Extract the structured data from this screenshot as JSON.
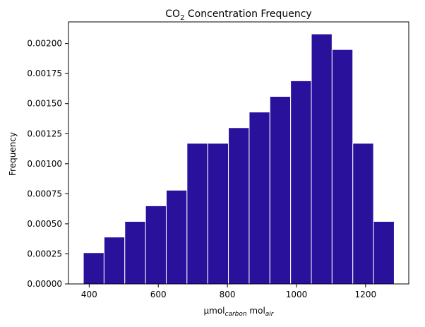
{
  "chart_data": {
    "type": "bar",
    "title": {
      "prefix": "CO",
      "subscript": "2",
      "suffix": " Concentration Frequency"
    },
    "xlabel": {
      "base1": "µmol",
      "sub1": "carbon",
      "base2": " mol",
      "sub2": "air"
    },
    "ylabel": "Frequency",
    "xlim": [
      340,
      1325
    ],
    "ylim": [
      0,
      0.00218
    ],
    "grid": false,
    "bar_color": "#2a119b",
    "bar_edge_color": "#ffffff",
    "bins": [
      {
        "x0": 383,
        "x1": 443,
        "value": 0.00026
      },
      {
        "x0": 443,
        "x1": 503,
        "value": 0.00039
      },
      {
        "x0": 503,
        "x1": 563,
        "value": 0.00052
      },
      {
        "x0": 563,
        "x1": 623,
        "value": 0.00065
      },
      {
        "x0": 623,
        "x1": 683,
        "value": 0.00078
      },
      {
        "x0": 683,
        "x1": 743,
        "value": 0.00117
      },
      {
        "x0": 743,
        "x1": 803,
        "value": 0.00117
      },
      {
        "x0": 803,
        "x1": 863,
        "value": 0.0013
      },
      {
        "x0": 863,
        "x1": 923,
        "value": 0.00143
      },
      {
        "x0": 923,
        "x1": 983,
        "value": 0.00156
      },
      {
        "x0": 983,
        "x1": 1043,
        "value": 0.00169
      },
      {
        "x0": 1043,
        "x1": 1103,
        "value": 0.00208
      },
      {
        "x0": 1103,
        "x1": 1163,
        "value": 0.00195
      },
      {
        "x0": 1163,
        "x1": 1223,
        "value": 0.00117
      },
      {
        "x0": 1223,
        "x1": 1283,
        "value": 0.00052
      }
    ],
    "xticks": [
      {
        "value": 400,
        "label": "400"
      },
      {
        "value": 600,
        "label": "600"
      },
      {
        "value": 800,
        "label": "800"
      },
      {
        "value": 1000,
        "label": "1000"
      },
      {
        "value": 1200,
        "label": "1200"
      }
    ],
    "yticks": [
      {
        "value": 0,
        "label": "0.00000"
      },
      {
        "value": 0.00025,
        "label": "0.00025"
      },
      {
        "value": 0.0005,
        "label": "0.00050"
      },
      {
        "value": 0.00075,
        "label": "0.00075"
      },
      {
        "value": 0.001,
        "label": "0.00100"
      },
      {
        "value": 0.00125,
        "label": "0.00125"
      },
      {
        "value": 0.0015,
        "label": "0.00150"
      },
      {
        "value": 0.00175,
        "label": "0.00175"
      },
      {
        "value": 0.002,
        "label": "0.00200"
      }
    ]
  }
}
